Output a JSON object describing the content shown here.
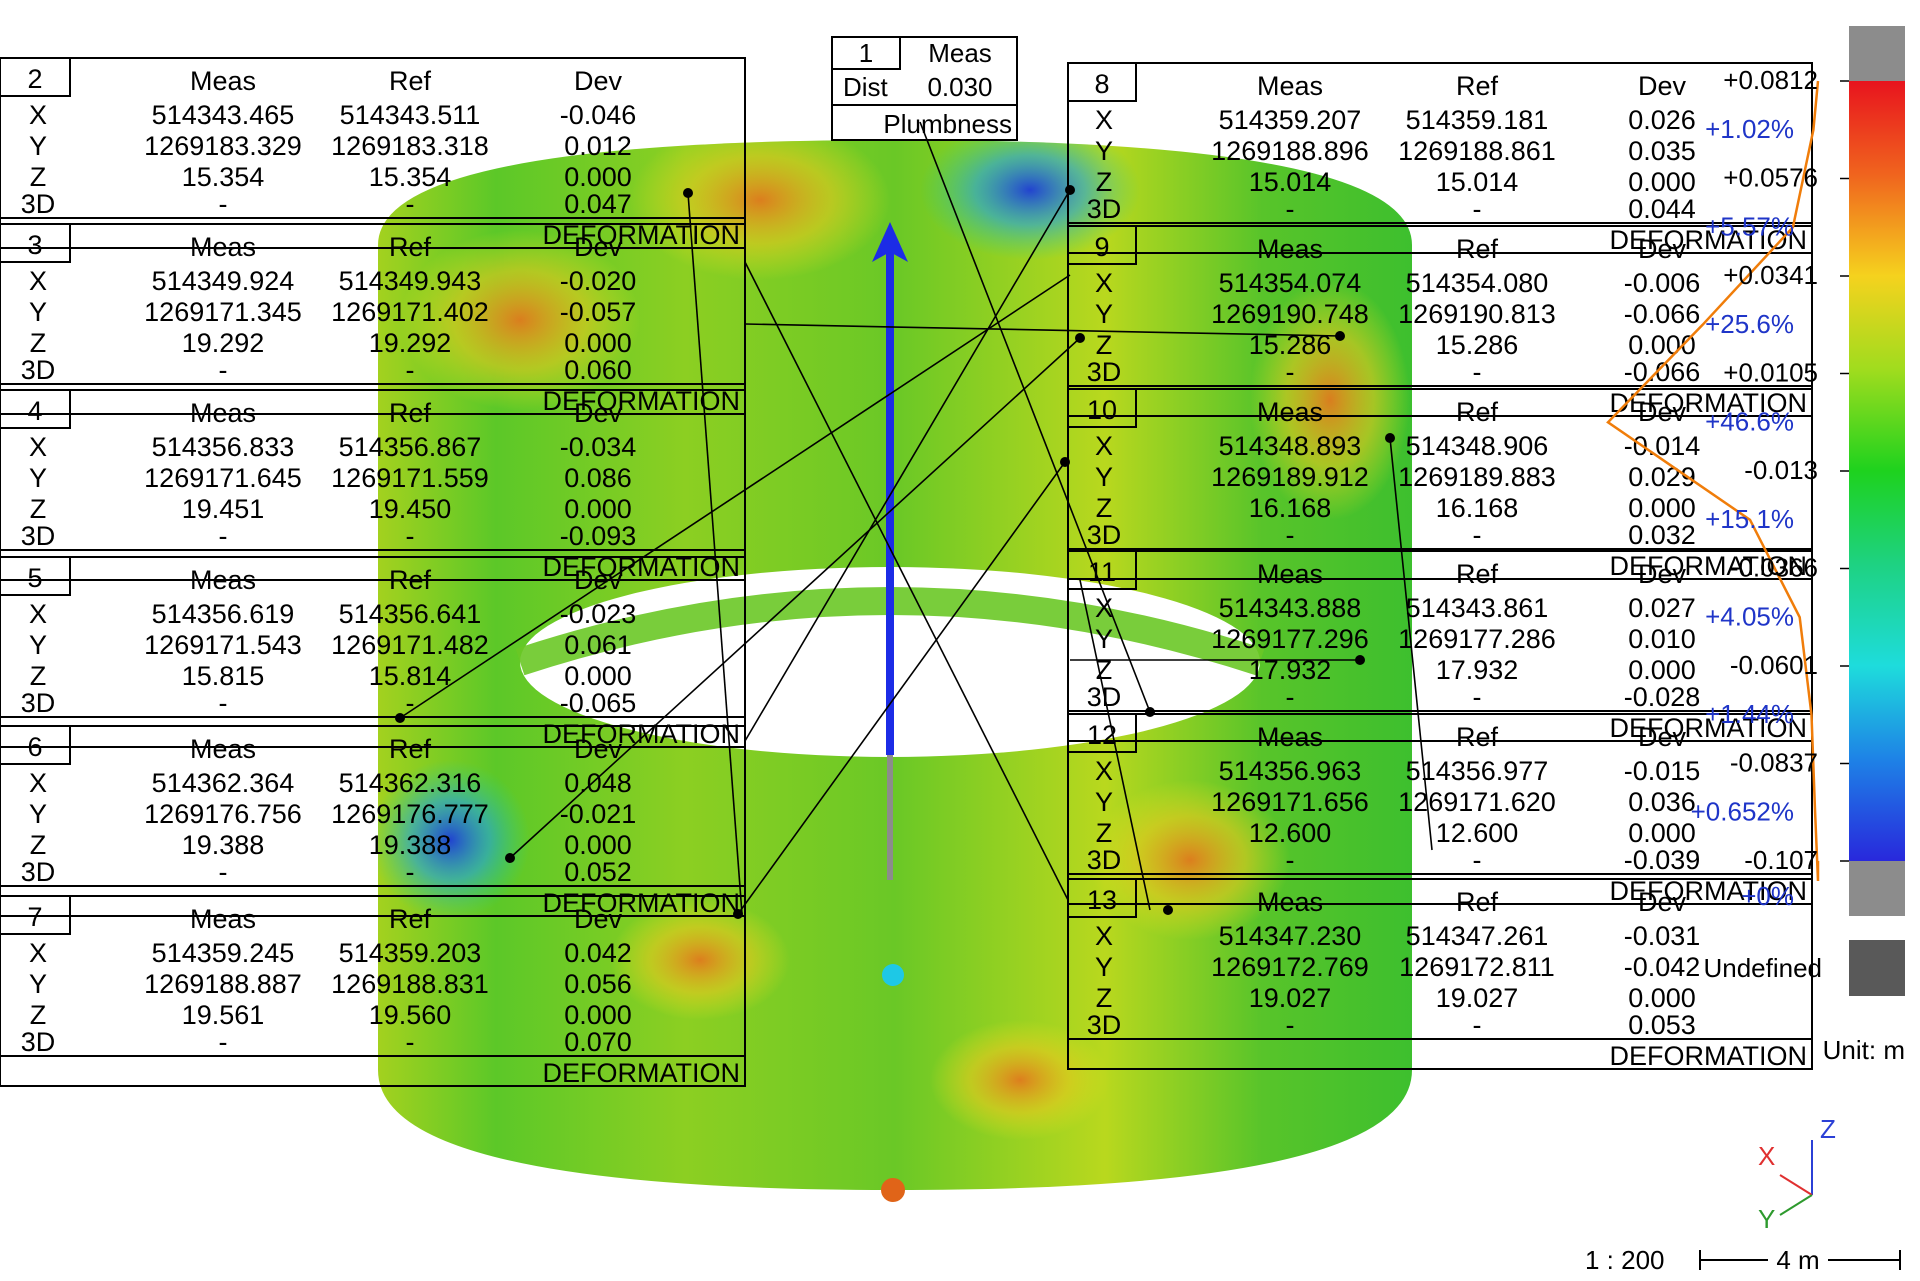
{
  "colors": {
    "green": "#3fc42a",
    "yellow": "#e6e01e",
    "orange": "#e0781e",
    "blue": "#1c3cd8",
    "cyan": "#1ec8e6",
    "grey": "#8c8c8c",
    "dark_grey": "#595959",
    "histogram": "#f07d0a",
    "percent_text": "#1f35c8",
    "axis_x": "#e03030",
    "axis_y": "#2e9a2e",
    "axis_z": "#2b40d6"
  },
  "headers": {
    "meas": "Meas",
    "ref": "Ref",
    "dev": "Dev"
  },
  "row_labels": [
    "X",
    "Y",
    "Z",
    "3D"
  ],
  "footer_label": "DEFORMATION",
  "plumbness": {
    "id": "1",
    "meas_label": "Meas",
    "dist_label": "Dist",
    "dist_value": "0.030",
    "caption": "Plumbness"
  },
  "tables": [
    {
      "id": "2",
      "rows": [
        [
          "514343.465",
          "514343.511",
          "-0.046"
        ],
        [
          "1269183.329",
          "1269183.318",
          "0.012"
        ],
        [
          "15.354",
          "15.354",
          "0.000"
        ],
        [
          "-",
          "-",
          "0.047"
        ]
      ]
    },
    {
      "id": "3",
      "rows": [
        [
          "514349.924",
          "514349.943",
          "-0.020"
        ],
        [
          "1269171.345",
          "1269171.402",
          "-0.057"
        ],
        [
          "19.292",
          "19.292",
          "0.000"
        ],
        [
          "-",
          "-",
          "0.060"
        ]
      ]
    },
    {
      "id": "4",
      "rows": [
        [
          "514356.833",
          "514356.867",
          "-0.034"
        ],
        [
          "1269171.645",
          "1269171.559",
          "0.086"
        ],
        [
          "19.451",
          "19.450",
          "0.000"
        ],
        [
          "-",
          "-",
          "-0.093"
        ]
      ]
    },
    {
      "id": "5",
      "rows": [
        [
          "514356.619",
          "514356.641",
          "-0.023"
        ],
        [
          "1269171.543",
          "1269171.482",
          "0.061"
        ],
        [
          "15.815",
          "15.814",
          "0.000"
        ],
        [
          "-",
          "-",
          "-0.065"
        ]
      ]
    },
    {
      "id": "6",
      "rows": [
        [
          "514362.364",
          "514362.316",
          "0.048"
        ],
        [
          "1269176.756",
          "1269176.777",
          "-0.021"
        ],
        [
          "19.388",
          "19.388",
          "0.000"
        ],
        [
          "-",
          "-",
          "0.052"
        ]
      ]
    },
    {
      "id": "7",
      "rows": [
        [
          "514359.245",
          "514359.203",
          "0.042"
        ],
        [
          "1269188.887",
          "1269188.831",
          "0.056"
        ],
        [
          "19.561",
          "19.560",
          "0.000"
        ],
        [
          "-",
          "-",
          "0.070"
        ]
      ]
    },
    {
      "id": "8",
      "rows": [
        [
          "514359.207",
          "514359.181",
          "0.026"
        ],
        [
          "1269188.896",
          "1269188.861",
          "0.035"
        ],
        [
          "15.014",
          "15.014",
          "0.000"
        ],
        [
          "-",
          "-",
          "0.044"
        ]
      ]
    },
    {
      "id": "9",
      "rows": [
        [
          "514354.074",
          "514354.080",
          "-0.006"
        ],
        [
          "1269190.748",
          "1269190.813",
          "-0.066"
        ],
        [
          "15.286",
          "15.286",
          "0.000"
        ],
        [
          "-",
          "-",
          "-0.066"
        ]
      ]
    },
    {
      "id": "10",
      "rows": [
        [
          "514348.893",
          "514348.906",
          "-0.014"
        ],
        [
          "1269189.912",
          "1269189.883",
          "0.029"
        ],
        [
          "16.168",
          "16.168",
          "0.000"
        ],
        [
          "-",
          "-",
          "0.032"
        ]
      ]
    },
    {
      "id": "11",
      "rows": [
        [
          "514343.888",
          "514343.861",
          "0.027"
        ],
        [
          "1269177.296",
          "1269177.286",
          "0.010"
        ],
        [
          "17.932",
          "17.932",
          "0.000"
        ],
        [
          "-",
          "-",
          "-0.028"
        ]
      ]
    },
    {
      "id": "12",
      "rows": [
        [
          "514356.963",
          "514356.977",
          "-0.015"
        ],
        [
          "1269171.656",
          "1269171.620",
          "0.036"
        ],
        [
          "12.600",
          "12.600",
          "0.000"
        ],
        [
          "-",
          "-",
          "-0.039"
        ]
      ]
    },
    {
      "id": "13",
      "rows": [
        [
          "514347.230",
          "514347.261",
          "-0.031"
        ],
        [
          "1269172.769",
          "1269172.811",
          "-0.042"
        ],
        [
          "19.027",
          "19.027",
          "0.000"
        ],
        [
          "-",
          "-",
          "0.053"
        ]
      ]
    }
  ],
  "color_scale": {
    "ticks": [
      "+0.0812",
      "+0.0576",
      "+0.0341",
      "+0.0105",
      "-0.013",
      "-0.0366",
      "-0.0601",
      "-0.0837",
      "-0.107"
    ],
    "percents": [
      "+1.02%",
      "+5.57%",
      "+25.6%",
      "+46.6%",
      "+15.1%",
      "+4.05%",
      "+1.44%",
      "+0.652%",
      "+0%"
    ],
    "histogram_percent": [
      1.02,
      5.57,
      25.6,
      46.6,
      15.1,
      4.05,
      1.44,
      0.652,
      0
    ],
    "undefined_label": "Undefined",
    "unit_label": "Unit: m"
  },
  "axes": {
    "x": "X",
    "y": "Y",
    "z": "Z"
  },
  "scale": {
    "ratio": "1 : 200",
    "bar_label": "4 m"
  }
}
